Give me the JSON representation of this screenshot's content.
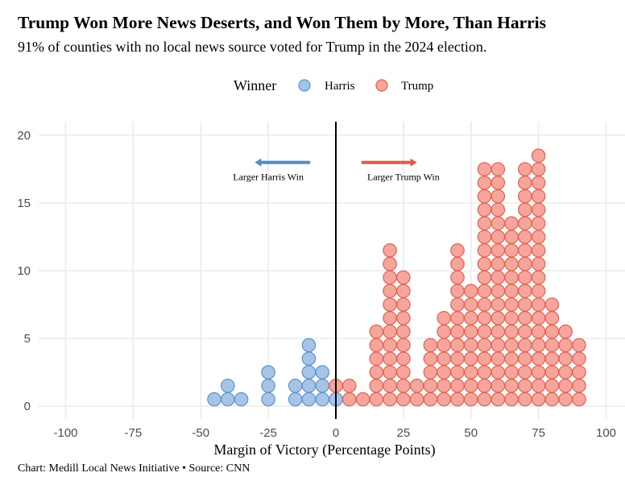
{
  "header": {
    "title": "Trump Won More News Deserts, and Won Them by More, Than Harris",
    "subtitle": "91% of counties with no local news source voted for Trump in the 2024 election."
  },
  "caption": "Chart: Medill Local News Initiative • Source: CNN",
  "chart_data": {
    "type": "scatter",
    "subtype": "dot-histogram",
    "title": "Trump Won More News Deserts, and Won Them by More, Than Harris",
    "subtitle": "91% of counties with no local news source voted for Trump in the 2024 election.",
    "xlabel": "Margin of Victory (Percentage Points)",
    "ylabel": "",
    "xlim": [
      -105,
      105
    ],
    "ylim": [
      -1,
      21
    ],
    "x_ticks": [
      -100,
      -75,
      -50,
      -25,
      0,
      25,
      50,
      75,
      100
    ],
    "y_ticks": [
      0,
      5,
      10,
      15,
      20
    ],
    "grid": true,
    "bin_width": 5,
    "legend": {
      "title": "Winner",
      "placement": "top-center",
      "entries": [
        "Harris",
        "Trump"
      ]
    },
    "colors": {
      "Harris": {
        "fill": "#a6c4e7",
        "stroke": "#5b92cc"
      },
      "Trump": {
        "fill": "#f5a59c",
        "stroke": "#e2604f"
      }
    },
    "series": [
      {
        "name": "Harris",
        "bins": [
          -45,
          -40,
          -35,
          -25,
          -15,
          -10,
          -5,
          0
        ],
        "counts": [
          1,
          2,
          1,
          3,
          2,
          5,
          3,
          1
        ]
      },
      {
        "name": "Trump",
        "bins": [
          0,
          5,
          10,
          15,
          20,
          25,
          30,
          35,
          40,
          45,
          50,
          55,
          60,
          65,
          70,
          75,
          80,
          85,
          90
        ],
        "counts": [
          1,
          2,
          1,
          6,
          12,
          10,
          2,
          5,
          7,
          12,
          9,
          18,
          18,
          14,
          18,
          19,
          8,
          6,
          5
        ]
      }
    ],
    "reference_line": {
      "x": 0,
      "color": "#000000"
    },
    "annotations": [
      {
        "text": "Larger Harris Win",
        "x": -25,
        "y": 17,
        "arrow": {
          "from": -10,
          "to": -30,
          "y": 18,
          "color": "#4f8cc9"
        }
      },
      {
        "text": "Larger Trump Win",
        "x": 25,
        "y": 17,
        "arrow": {
          "from": 10,
          "to": 30,
          "y": 18,
          "color": "#e15846"
        }
      }
    ]
  }
}
